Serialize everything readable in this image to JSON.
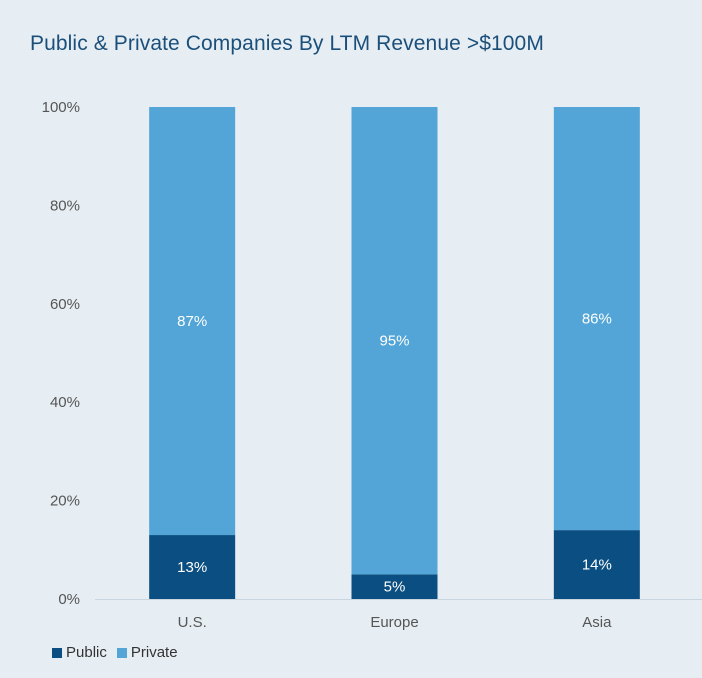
{
  "chart_data": {
    "type": "bar",
    "stacked": true,
    "title": "Public & Private Companies By LTM Revenue >$100M",
    "categories": [
      "U.S.",
      "Europe",
      "Asia"
    ],
    "series": [
      {
        "name": "Public",
        "values": [
          13,
          5,
          14
        ],
        "labels": [
          "13%",
          "5%",
          "14%"
        ],
        "color": "#0b4f82"
      },
      {
        "name": "Private",
        "values": [
          87,
          95,
          86
        ],
        "labels": [
          "87%",
          "95%",
          "86%"
        ],
        "color": "#52a5d6"
      }
    ],
    "yticks": [
      "0%",
      "20%",
      "40%",
      "60%",
      "80%",
      "100%"
    ],
    "ylim": [
      0,
      100
    ],
    "legend_position": "bottom-left",
    "grid": false
  },
  "colors": {
    "background": "#e6eef4",
    "title": "#1b4f7a",
    "axis_text": "#555555"
  }
}
